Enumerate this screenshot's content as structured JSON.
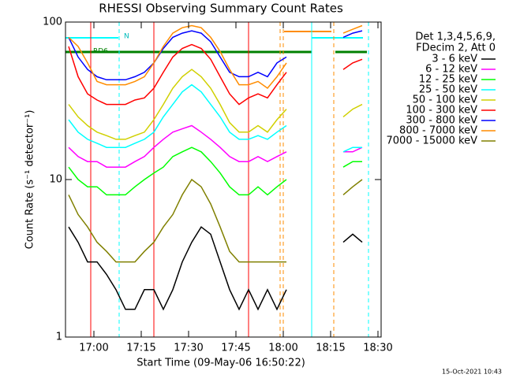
{
  "chart_data": {
    "type": "line",
    "title": "RHESSI Observing Summary Count Rates",
    "x_label": "Start Time (09-May-06 16:50:22)",
    "y_label": "Count Rate (s⁻¹ detector⁻¹)",
    "legend_title": [
      "Det 1,3,4,5,6,9,",
      "FDecim 2, Att 0"
    ],
    "annotations": [
      "RD6",
      "N"
    ],
    "footer": "15-Oct-2021 10:43",
    "log_scale": true,
    "legend": "right",
    "xlim": [
      "16:51",
      "18:31"
    ],
    "xticks": [
      "17:00",
      "17:15",
      "17:30",
      "17:45",
      "18:00",
      "18:15",
      "18:30"
    ],
    "ylim": [
      1,
      100
    ],
    "yticks": [
      1,
      10,
      100
    ],
    "x": [
      "16:52",
      "16:55",
      "16:58",
      "17:01",
      "17:04",
      "17:07",
      "17:10",
      "17:13",
      "17:16",
      "17:19",
      "17:22",
      "17:25",
      "17:28",
      "17:31",
      "17:34",
      "17:37",
      "17:40",
      "17:43",
      "17:46",
      "17:49",
      "17:52",
      "17:55",
      "17:58",
      "18:01",
      "18:04",
      "18:07",
      "18:10",
      "18:13",
      "18:16",
      "18:19",
      "18:22",
      "18:25",
      "18:28"
    ],
    "series": [
      {
        "name": "3 - 6 keV",
        "color": "#000000",
        "values": [
          5,
          4,
          3,
          3,
          2.5,
          2,
          1.5,
          1.5,
          2,
          2,
          1.5,
          2,
          3,
          4,
          5,
          4.5,
          3,
          2,
          1.5,
          2,
          1.5,
          2,
          1.5,
          2,
          null,
          null,
          null,
          null,
          null,
          4,
          4.5,
          4,
          null
        ]
      },
      {
        "name": "6 - 12 keV",
        "color": "#ff00ff",
        "values": [
          16,
          14,
          13,
          13,
          12,
          12,
          12,
          13,
          14,
          16,
          18,
          20,
          21,
          22,
          20,
          18,
          16,
          14,
          13,
          13,
          14,
          13,
          14,
          15,
          null,
          null,
          null,
          null,
          null,
          15,
          15,
          16,
          null
        ]
      },
      {
        "name": "12 - 25 keV",
        "color": "#00ff00",
        "values": [
          12,
          10,
          9,
          9,
          8,
          8,
          8,
          9,
          10,
          11,
          12,
          14,
          15,
          16,
          15,
          13,
          11,
          9,
          8,
          8,
          9,
          8,
          9,
          10,
          null,
          null,
          null,
          null,
          null,
          12,
          13,
          13,
          null
        ]
      },
      {
        "name": "25 - 50 keV",
        "color": "#00ffff",
        "values": [
          24,
          20,
          18,
          17,
          16,
          16,
          16,
          17,
          18,
          20,
          25,
          30,
          36,
          40,
          36,
          30,
          25,
          20,
          18,
          18,
          19,
          18,
          20,
          22,
          null,
          null,
          null,
          null,
          null,
          15,
          16,
          16,
          null
        ]
      },
      {
        "name": "50 - 100 keV",
        "color": "#d0d000",
        "values": [
          30,
          25,
          22,
          20,
          19,
          18,
          18,
          19,
          20,
          24,
          30,
          38,
          45,
          50,
          45,
          38,
          30,
          23,
          20,
          20,
          22,
          20,
          24,
          28,
          null,
          null,
          null,
          null,
          null,
          25,
          28,
          30,
          null
        ]
      },
      {
        "name": "100 - 300 keV",
        "color": "#ff0000",
        "values": [
          70,
          45,
          35,
          32,
          30,
          30,
          30,
          32,
          33,
          38,
          48,
          60,
          68,
          72,
          68,
          58,
          45,
          35,
          30,
          33,
          35,
          33,
          40,
          48,
          null,
          null,
          null,
          null,
          null,
          50,
          55,
          58,
          null
        ]
      },
      {
        "name": "300 - 800 keV",
        "color": "#0000ff",
        "values": [
          80,
          60,
          50,
          45,
          43,
          43,
          43,
          45,
          48,
          55,
          68,
          80,
          85,
          88,
          85,
          75,
          60,
          48,
          45,
          45,
          48,
          45,
          55,
          60,
          null,
          null,
          null,
          null,
          null,
          80,
          85,
          88,
          null
        ]
      },
      {
        "name": "800 - 7000 keV",
        "color": "#ff8c00",
        "values": [
          80,
          70,
          55,
          42,
          40,
          40,
          40,
          42,
          45,
          55,
          70,
          85,
          92,
          95,
          92,
          80,
          65,
          50,
          40,
          40,
          42,
          38,
          45,
          55,
          null,
          null,
          null,
          null,
          null,
          85,
          90,
          95,
          null
        ]
      },
      {
        "name": "7000 - 15000 keV",
        "color": "#808000",
        "values": [
          8,
          6,
          5,
          4,
          3.5,
          3,
          3,
          3,
          3.5,
          4,
          5,
          6,
          8,
          10,
          9,
          7,
          5,
          3.5,
          3,
          3,
          3,
          3,
          3,
          3,
          null,
          null,
          null,
          null,
          null,
          8,
          9,
          10,
          null
        ]
      }
    ],
    "markers": [
      {
        "x": "16:59",
        "color": "#ff0000",
        "dashed": false
      },
      {
        "x": "17:08",
        "color": "#00ffff",
        "dashed": true
      },
      {
        "x": "17:19",
        "color": "#ff0000",
        "dashed": false
      },
      {
        "x": "17:49",
        "color": "#ff0000",
        "dashed": false
      },
      {
        "x": "17:59",
        "color": "#ff8c00",
        "dashed": true
      },
      {
        "x": "18:00",
        "color": "#ff8c00",
        "dashed": true
      },
      {
        "x": "18:09",
        "color": "#00ffff",
        "dashed": false
      },
      {
        "x": "18:16",
        "color": "#ff8c00",
        "dashed": true
      },
      {
        "x": "18:27",
        "color": "#00ffff",
        "dashed": true
      }
    ]
  }
}
